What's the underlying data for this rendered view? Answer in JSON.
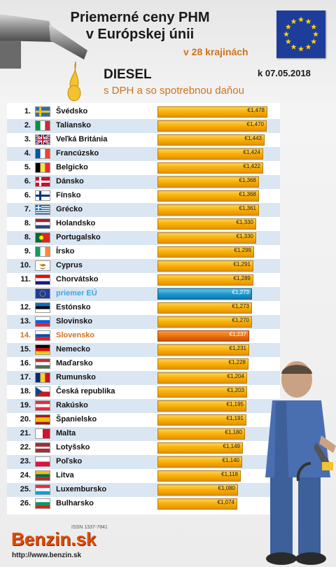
{
  "header": {
    "title_line1": "Priemerné ceny PHM",
    "title_line2": "v Európskej únii",
    "title_line3": "v 28 krajinách",
    "fuel": "DIESEL",
    "subtitle": "s DPH a so spotrebnou daňou",
    "date": "k 07.05.2018"
  },
  "footer": {
    "issn": "ISSN 1337-7841",
    "logo": "Benzin.sk",
    "url": "http://www.benzin.sk"
  },
  "colors": {
    "bar": "#f5a800",
    "eu_bar": "#1b8fc4",
    "sk_bar": "#e46a0a",
    "accent": "#d0731b"
  },
  "chart_data": {
    "type": "bar",
    "orientation": "horizontal",
    "title": "Priemerné ceny PHM v Európskej únii",
    "xlim": [
      0,
      1.478
    ],
    "categories": [
      "Švédsko",
      "Taliansko",
      "Veľká Británia",
      "Francúzsko",
      "Belgicko",
      "Dánsko",
      "Fínsko",
      "Grécko",
      "Holandsko",
      "Portugalsko",
      "Írsko",
      "Cyprus",
      "Chorvátsko",
      "priemer EÚ",
      "Estónsko",
      "Slovinsko",
      "Slovensko",
      "Nemecko",
      "Maďarsko",
      "Rumunsko",
      "Česká republika",
      "Rakúsko",
      "Španielsko",
      "Malta",
      "Lotyšsko",
      "Poľsko",
      "Litva",
      "Luxembursko",
      "Bulharsko"
    ],
    "ranks": [
      "1.",
      "2.",
      "3.",
      "4.",
      "5.",
      "6.",
      "6.",
      "7.",
      "8.",
      "8.",
      "9.",
      "10.",
      "11.",
      "",
      "12.",
      "13.",
      "14.",
      "15.",
      "16.",
      "17.",
      "18.",
      "19.",
      "20.",
      "21.",
      "22.",
      "23.",
      "24.",
      "25.",
      "26."
    ],
    "values": [
      1.478,
      1.47,
      1.443,
      1.424,
      1.422,
      1.368,
      1.368,
      1.361,
      1.33,
      1.33,
      1.299,
      1.291,
      1.289,
      1.273,
      1.273,
      1.27,
      1.237,
      1.231,
      1.228,
      1.204,
      1.203,
      1.195,
      1.191,
      1.18,
      1.149,
      1.14,
      1.118,
      1.08,
      1.074
    ],
    "labels": [
      "€1,478",
      "€1,470",
      "€1,443",
      "€1,424",
      "€1,422",
      "€1,368",
      "€1,368",
      "€1,361",
      "€1,330",
      "€1,330",
      "€1,299",
      "€1,291",
      "€1,289",
      "€1,273",
      "€1,273",
      "€1,270",
      "€1,237",
      "€1,231",
      "€1,228",
      "€1,204",
      "€1,203",
      "€1,195",
      "€1,191",
      "€1,180",
      "€1,149",
      "€1,140",
      "€1,118",
      "€1,080",
      "€1,074"
    ],
    "highlight": {
      "eu_average": "priemer EÚ",
      "slovakia": "Slovensko"
    }
  }
}
